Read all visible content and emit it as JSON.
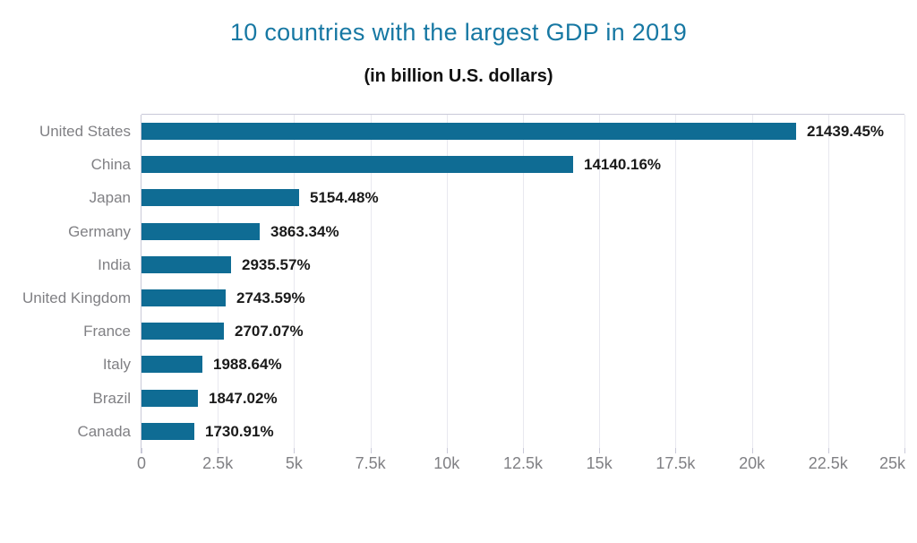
{
  "chart_data": {
    "type": "bar",
    "orientation": "horizontal",
    "title": "10 countries with the largest GDP in 2019",
    "subtitle": "(in billion U.S. dollars)",
    "categories": [
      "United States",
      "China",
      "Japan",
      "Germany",
      "India",
      "United Kingdom",
      "France",
      "Italy",
      "Brazil",
      "Canada"
    ],
    "values": [
      21439.45,
      14140.16,
      5154.48,
      3863.34,
      2935.57,
      2743.59,
      2707.07,
      1988.64,
      1847.02,
      1730.91
    ],
    "value_labels": [
      "21439.45%",
      "14140.16%",
      "5154.48%",
      "3863.34%",
      "2935.57%",
      "2743.59%",
      "2707.07%",
      "1988.64%",
      "1847.02%",
      "1730.91%"
    ],
    "xlim": [
      0,
      25000
    ],
    "x_ticks": [
      {
        "value": 0,
        "label": "0"
      },
      {
        "value": 2500,
        "label": "2.5k"
      },
      {
        "value": 5000,
        "label": "5k"
      },
      {
        "value": 7500,
        "label": "7.5k"
      },
      {
        "value": 10000,
        "label": "10k"
      },
      {
        "value": 12500,
        "label": "12.5k"
      },
      {
        "value": 15000,
        "label": "15k"
      },
      {
        "value": 17500,
        "label": "17.5k"
      },
      {
        "value": 20000,
        "label": "20k"
      },
      {
        "value": 22500,
        "label": "22.5k"
      },
      {
        "value": 25000,
        "label": "25k"
      }
    ],
    "grid": true,
    "legend": "none",
    "colors": {
      "bar": "#0f6c94",
      "title": "#1778a3",
      "subtitle": "#111111",
      "category_label": "#808084",
      "tick_label": "#808084",
      "value_label": "#1a1a1a",
      "gridline": "#e8e8ef",
      "axis_line": "#c9c9d8",
      "background": "#ffffff"
    }
  }
}
